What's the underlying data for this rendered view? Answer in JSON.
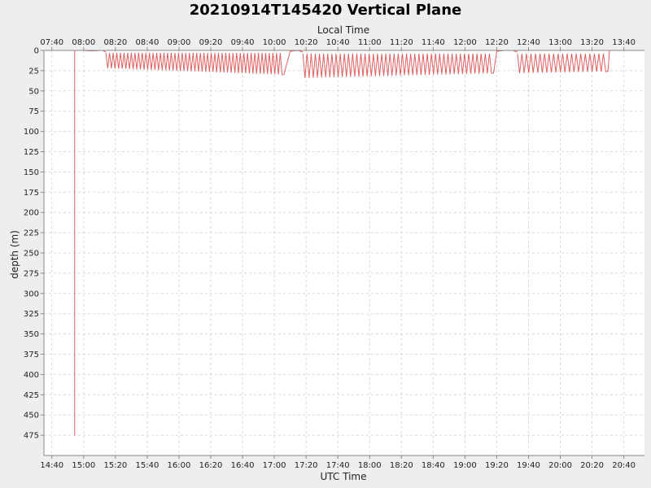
{
  "chart_data": {
    "type": "line",
    "title": "20210914T145420 Vertical Plane",
    "top_axis_label": "Local Time",
    "bottom_axis_label": "UTC Time",
    "ylabel": "depth (m)",
    "utc_ticks": [
      "14:40",
      "15:00",
      "15:20",
      "15:40",
      "16:00",
      "16:20",
      "16:40",
      "17:00",
      "17:20",
      "17:40",
      "18:00",
      "18:20",
      "18:40",
      "19:00",
      "19:20",
      "19:40",
      "20:00",
      "20:20",
      "20:40"
    ],
    "local_ticks": [
      "07:40",
      "08:00",
      "08:20",
      "08:40",
      "09:00",
      "09:20",
      "09:40",
      "10:00",
      "10:20",
      "10:40",
      "11:00",
      "11:20",
      "11:40",
      "12:00",
      "12:20",
      "12:40",
      "13:00",
      "13:20",
      "13:40"
    ],
    "x_range_utc": [
      "14:35",
      "20:53"
    ],
    "y_ticks": [
      0,
      25,
      50,
      75,
      100,
      125,
      150,
      175,
      200,
      225,
      250,
      275,
      300,
      325,
      350,
      375,
      400,
      425,
      450,
      475
    ],
    "ylim": [
      0,
      500
    ],
    "y_inverted": true,
    "grid": true,
    "color": "#e06060",
    "series": [
      {
        "segments": [
          {
            "points": [
              [
                "14:54:20",
                0
              ],
              [
                "14:54:20",
                475
              ],
              [
                "14:54:20",
                0
              ]
            ]
          },
          {
            "points": [
              [
                "14:55",
                0
              ],
              [
                "15:00",
                0
              ],
              [
                "15:03",
                0.5
              ],
              [
                "15:07",
                0.5
              ],
              [
                "15:10",
                0
              ],
              [
                "15:12",
                0
              ],
              [
                "15:14",
                2
              ]
            ]
          },
          {
            "start": "15:14",
            "end": "17:06",
            "min_depth": 3,
            "max_depth": 22,
            "max_depth_end": 30,
            "period_min": 2.3
          },
          {
            "points": [
              [
                "17:06",
                30
              ],
              [
                "17:10",
                1
              ],
              [
                "17:15",
                0
              ],
              [
                "17:18",
                2
              ]
            ]
          },
          {
            "start": "17:18",
            "end": "19:18",
            "min_depth": 4,
            "max_depth": 34,
            "max_depth_end": 28,
            "period_min": 2.6
          },
          {
            "points": [
              [
                "19:18",
                28
              ],
              [
                "19:20",
                1
              ],
              [
                "19:25",
                0
              ],
              [
                "19:30",
                0
              ],
              [
                "19:33",
                2
              ]
            ]
          },
          {
            "start": "19:33",
            "end": "20:30",
            "min_depth": 4,
            "max_depth": 28,
            "max_depth_end": 26,
            "period_min": 2.8
          },
          {
            "points": [
              [
                "20:30",
                26
              ],
              [
                "20:31",
                0
              ],
              [
                "20:33",
                0
              ]
            ]
          }
        ]
      }
    ]
  }
}
